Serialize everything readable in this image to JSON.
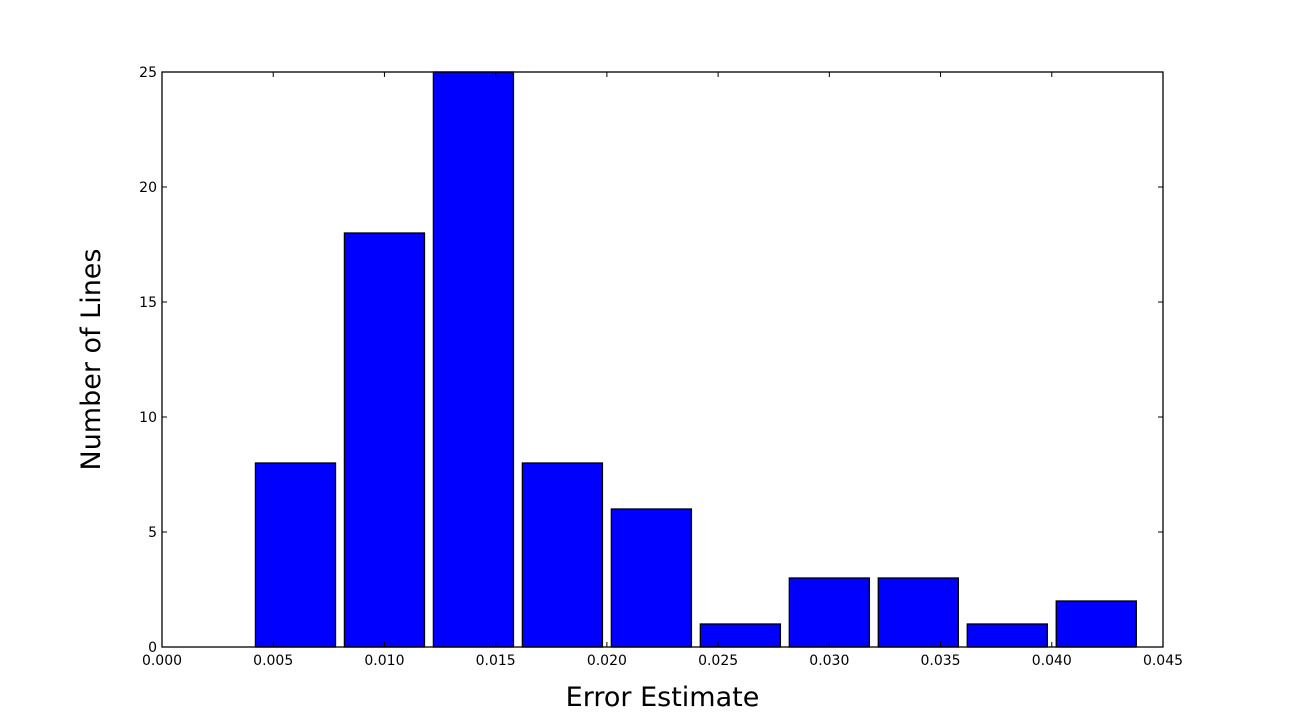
{
  "chart_data": {
    "type": "bar",
    "title": "",
    "xlabel": "Error Estimate",
    "ylabel": "Number of Lines",
    "xlim": [
      0.0,
      0.045
    ],
    "ylim": [
      0,
      25
    ],
    "grid": false,
    "bin_width": 0.0036,
    "bar_fraction": 0.9,
    "bars": [
      {
        "bin_start": 0.0042,
        "value": 8
      },
      {
        "bin_start": 0.0082,
        "value": 18
      },
      {
        "bin_start": 0.0122,
        "value": 25
      },
      {
        "bin_start": 0.0162,
        "value": 8
      },
      {
        "bin_start": 0.0202,
        "value": 6
      },
      {
        "bin_start": 0.0242,
        "value": 1
      },
      {
        "bin_start": 0.0282,
        "value": 3
      },
      {
        "bin_start": 0.0322,
        "value": 3
      },
      {
        "bin_start": 0.0362,
        "value": 1
      },
      {
        "bin_start": 0.0402,
        "value": 2
      }
    ],
    "x_ticks": [
      {
        "value": 0.0,
        "label": "0.000"
      },
      {
        "value": 0.005,
        "label": "0.005"
      },
      {
        "value": 0.01,
        "label": "0.010"
      },
      {
        "value": 0.015,
        "label": "0.015"
      },
      {
        "value": 0.02,
        "label": "0.020"
      },
      {
        "value": 0.025,
        "label": "0.025"
      },
      {
        "value": 0.03,
        "label": "0.030"
      },
      {
        "value": 0.035,
        "label": "0.035"
      },
      {
        "value": 0.04,
        "label": "0.040"
      },
      {
        "value": 0.045,
        "label": "0.045"
      }
    ],
    "y_ticks": [
      {
        "value": 0,
        "label": "0"
      },
      {
        "value": 5,
        "label": "5"
      },
      {
        "value": 10,
        "label": "10"
      },
      {
        "value": 15,
        "label": "15"
      },
      {
        "value": 20,
        "label": "20"
      },
      {
        "value": 25,
        "label": "25"
      }
    ],
    "colors": {
      "bar_fill": "#0000ff",
      "bar_edge": "#000000",
      "axes": "#000000",
      "background": "#ffffff"
    }
  }
}
